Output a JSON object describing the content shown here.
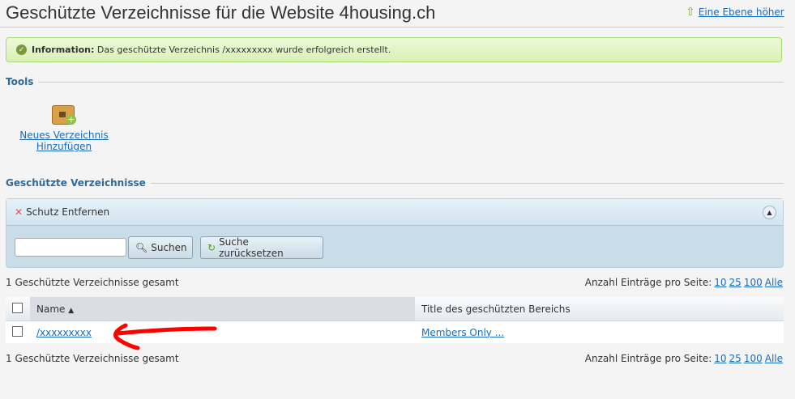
{
  "header": {
    "title": "Geschützte Verzeichnisse für die Website 4housing.ch",
    "up_link": "Eine Ebene höher"
  },
  "info": {
    "label": "Information:",
    "message": "Das geschützte Verzeichnis /xxxxxxxxx wurde erfolgreich erstellt."
  },
  "tools": {
    "heading": "Tools",
    "add_line1": "Neues Verzeichnis",
    "add_line2": "Hinzufügen"
  },
  "list": {
    "heading": "Geschützte Verzeichnisse",
    "remove_label": "Schutz Entfernen",
    "search_value": "",
    "search_button": "Suchen",
    "reset_button": "Suche zurücksetzen",
    "total": "1 Geschützte Verzeichnisse gesamt",
    "per_page_label": "Anzahl Einträge pro Seite:",
    "per_page": [
      "10",
      "25",
      "100",
      "Alle"
    ],
    "columns": [
      "Name",
      "Title des geschützten Bereichs"
    ],
    "rows": [
      {
        "name": "/xxxxxxxxx",
        "title": "Members Only ..."
      }
    ]
  },
  "colors": {
    "accent": "#1b6cb8",
    "annotation": "#ff0000"
  }
}
